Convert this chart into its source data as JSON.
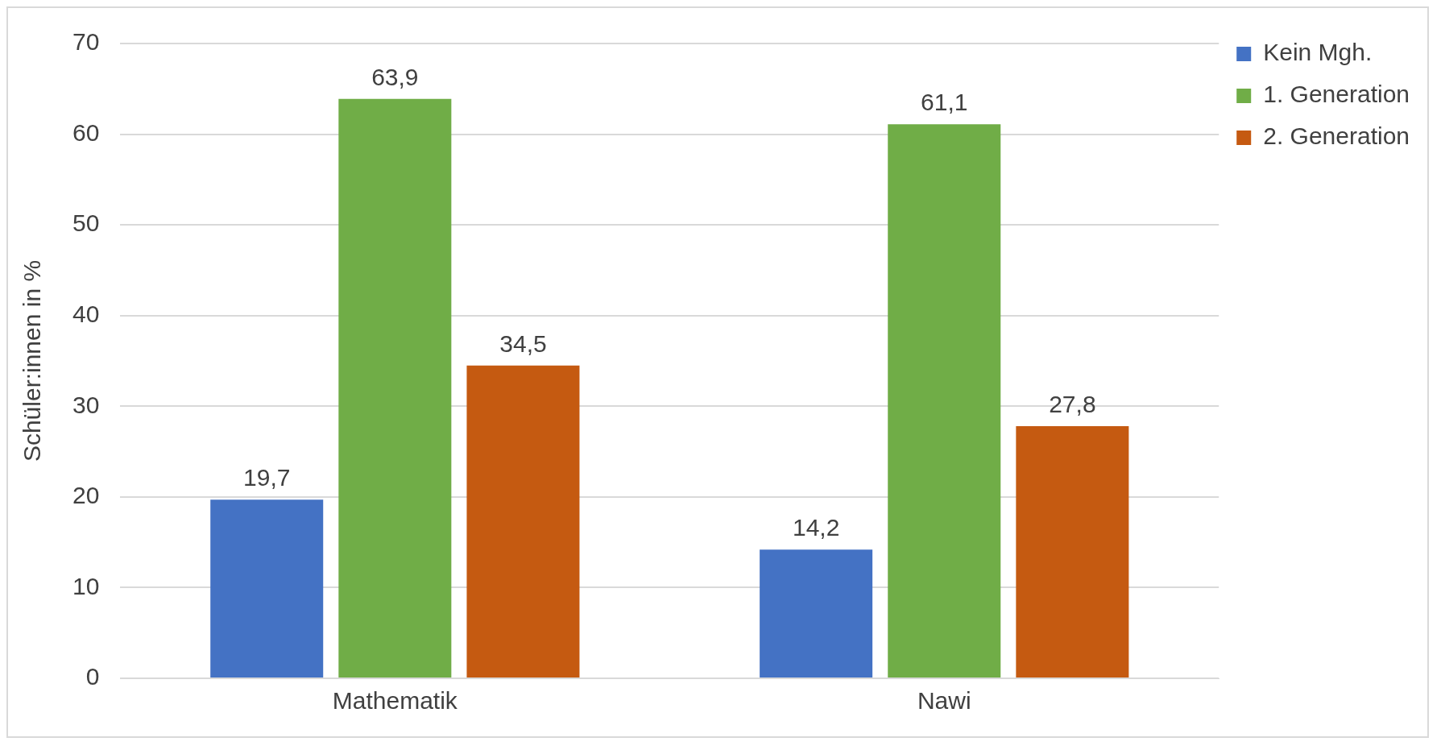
{
  "chart_data": {
    "type": "bar",
    "ylabel": "Schüler:innen in %",
    "categories": [
      "Mathematik",
      "Nawi"
    ],
    "series": [
      {
        "name": "Kein Mgh.",
        "color": "#4472c4",
        "values": [
          19.7,
          14.2
        ],
        "value_labels": [
          "19,7",
          "14,2"
        ]
      },
      {
        "name": "1. Generation",
        "color": "#70ad47",
        "values": [
          63.9,
          61.1
        ],
        "value_labels": [
          "63,9",
          "61,1"
        ]
      },
      {
        "name": "2. Generation",
        "color": "#c55a11",
        "values": [
          34.5,
          27.8
        ],
        "value_labels": [
          "34,5",
          "27,8"
        ]
      }
    ],
    "ylim": [
      0,
      70
    ],
    "yticks": [
      0,
      10,
      20,
      30,
      40,
      50,
      60,
      70
    ],
    "grid": "y",
    "legend": "top right"
  }
}
